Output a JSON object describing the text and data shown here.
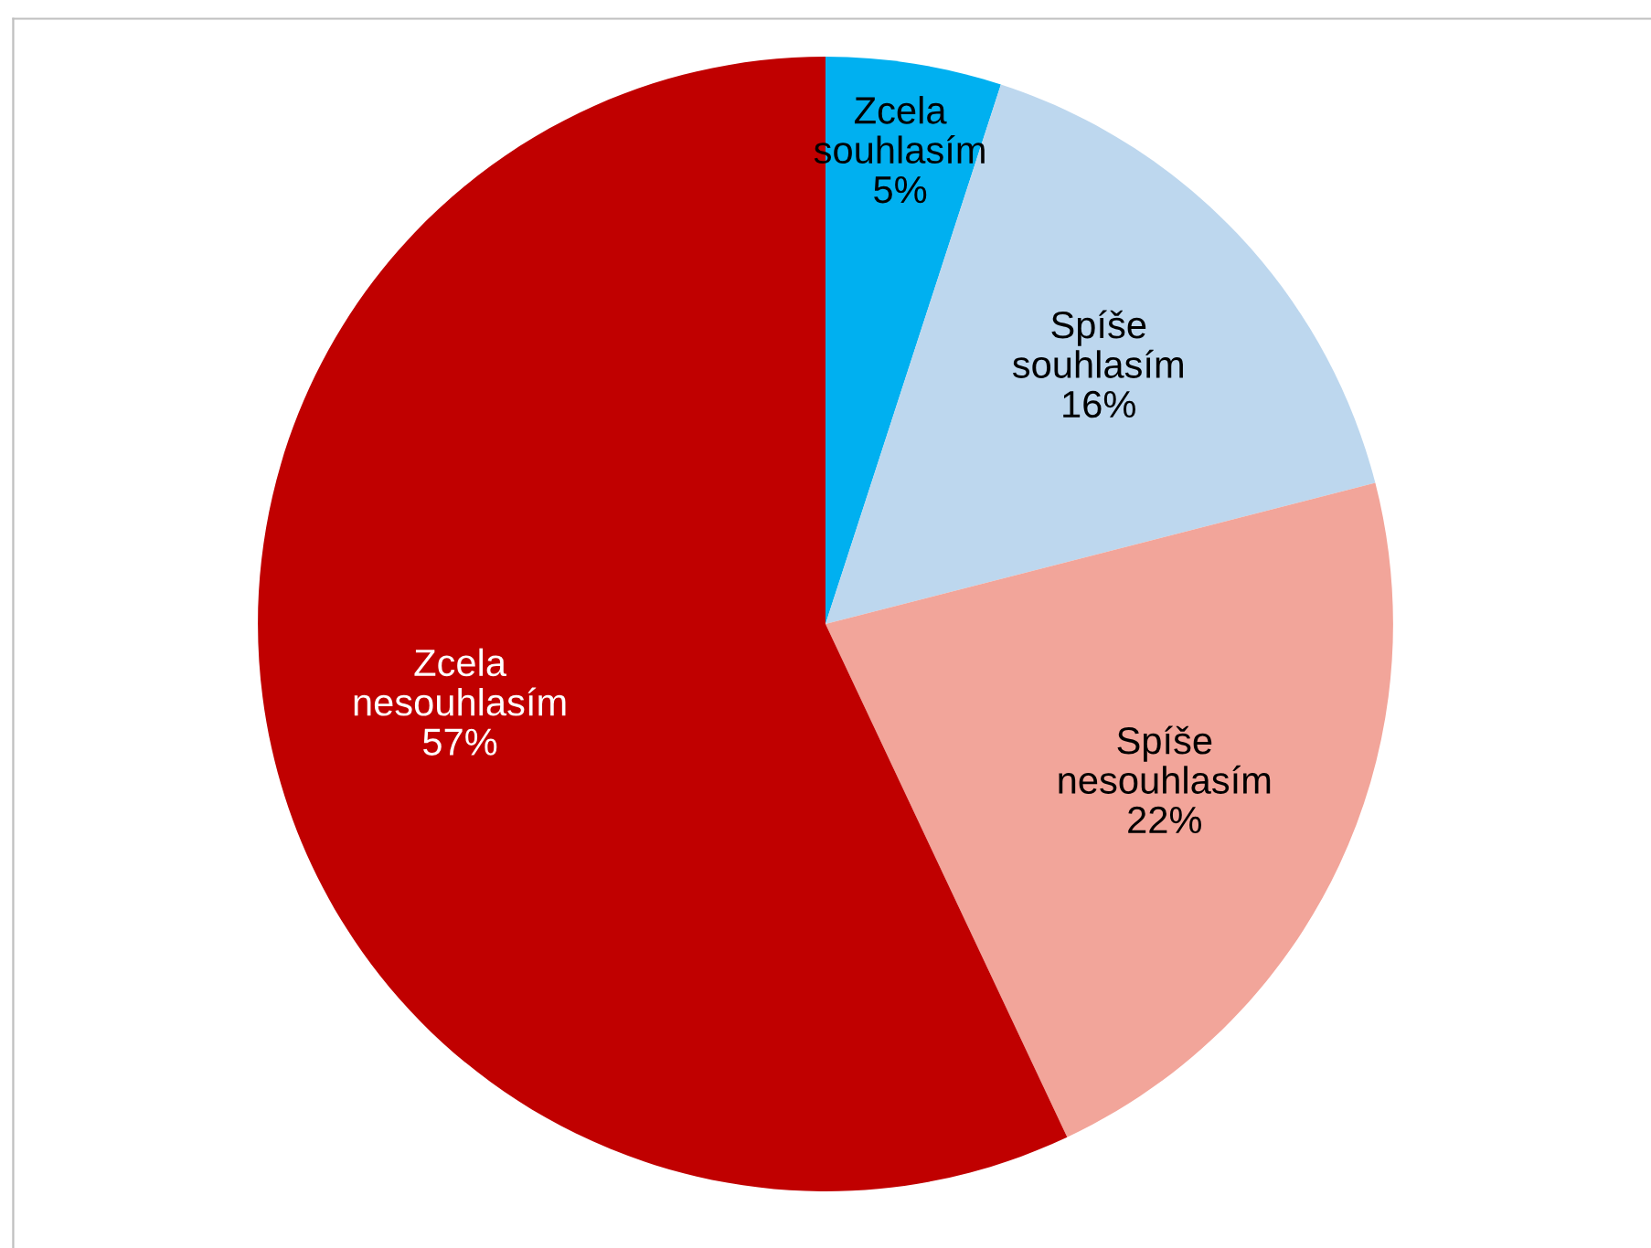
{
  "chart_data": {
    "type": "pie",
    "categories": [
      "Zcela souhlasím",
      "Spíše souhlasím",
      "Spíše nesouhlasím",
      "Zcela nesouhlasím"
    ],
    "values": [
      5,
      16,
      22,
      57
    ],
    "colors": [
      "#00b0f0",
      "#bdd7ee",
      "#f2a59a",
      "#c00000"
    ],
    "value_labels": [
      "5%",
      "16%",
      "22%",
      "57%"
    ]
  }
}
